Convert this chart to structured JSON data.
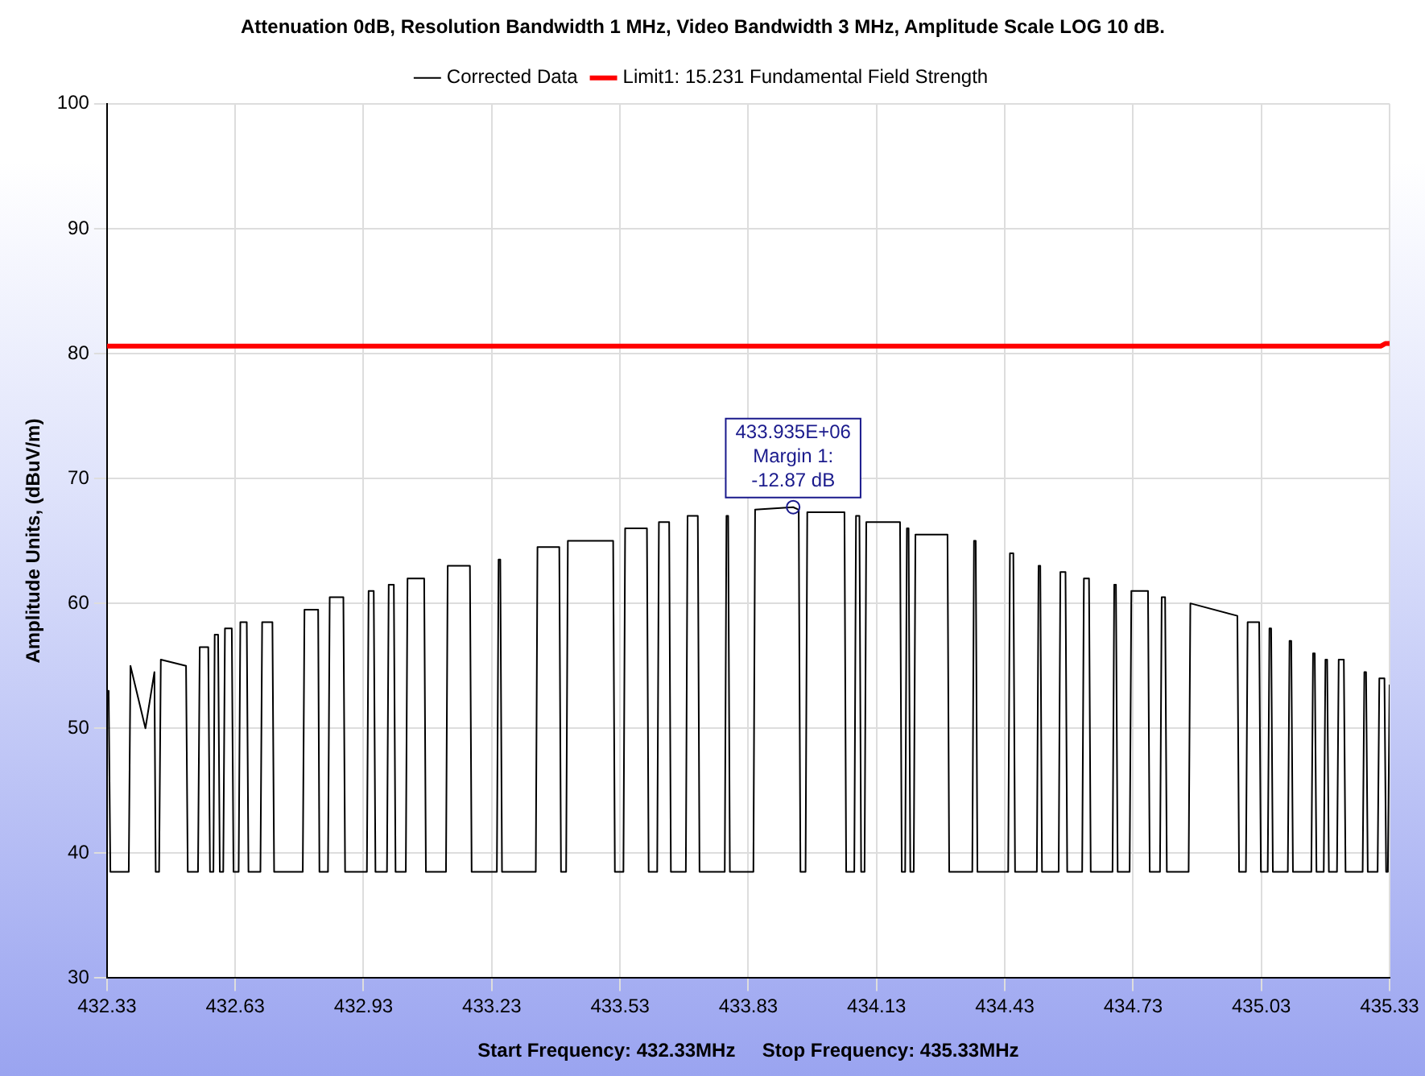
{
  "chart_data": {
    "type": "line",
    "title": "Attenuation 0dB, Resolution Bandwidth 1 MHz, Video Bandwidth 3 MHz, Amplitude Scale LOG 10 dB.",
    "xlabel": "Start Frequency: 432.33MHz     Stop Frequency: 435.33MHz",
    "ylabel": "Amplitude Units, (dBuV/m)",
    "xlim": [
      432.33,
      435.33
    ],
    "xticks": [
      432.33,
      432.63,
      432.93,
      433.23,
      433.53,
      433.83,
      434.13,
      434.43,
      434.73,
      435.03,
      435.33
    ],
    "ylim": [
      30,
      100
    ],
    "yticks": [
      30,
      40,
      50,
      60,
      70,
      80,
      90,
      100
    ],
    "grid": true,
    "legend": "top",
    "marker": "none",
    "line_style": "solid",
    "annotations": [
      {
        "text": "433.935E+06\nMargin 1:\n-12.87 dB",
        "x": 433.935,
        "y": 67.7
      }
    ],
    "series": [
      {
        "name": "Corrected Data",
        "color": "#000000",
        "x": [
          432.33,
          432.334,
          432.338,
          432.381,
          432.385,
          432.42,
          432.441,
          432.444,
          432.452,
          432.456,
          432.515,
          432.519,
          432.543,
          432.547,
          432.567,
          432.571,
          432.579,
          432.582,
          432.59,
          432.594,
          432.602,
          432.606,
          432.622,
          432.626,
          432.638,
          432.642,
          432.657,
          432.661,
          432.689,
          432.693,
          432.717,
          432.721,
          432.788,
          432.792,
          432.824,
          432.827,
          432.847,
          432.851,
          432.883,
          432.887,
          432.938,
          432.942,
          432.954,
          432.958,
          432.985,
          432.989,
          433.001,
          433.005,
          433.029,
          433.033,
          433.072,
          433.076,
          433.123,
          433.127,
          433.179,
          433.183,
          433.242,
          433.246,
          433.25,
          433.254,
          433.333,
          433.337,
          433.388,
          433.392,
          433.404,
          433.408,
          433.514,
          433.518,
          433.538,
          433.542,
          433.593,
          433.597,
          433.617,
          433.621,
          433.645,
          433.649,
          433.684,
          433.688,
          433.712,
          433.716,
          433.775,
          433.779,
          433.783,
          433.787,
          433.842,
          433.846,
          433.935,
          433.948,
          433.952,
          433.964,
          433.968,
          434.055,
          434.059,
          434.078,
          434.082,
          434.09,
          434.094,
          434.102,
          434.106,
          434.185,
          434.189,
          434.197,
          434.201,
          434.205,
          434.209,
          434.217,
          434.221,
          434.296,
          434.3,
          434.354,
          434.358,
          434.362,
          434.366,
          434.438,
          434.442,
          434.45,
          434.454,
          434.505,
          434.509,
          434.513,
          434.517,
          434.556,
          434.56,
          434.572,
          434.576,
          434.611,
          434.615,
          434.627,
          434.631,
          434.682,
          434.686,
          434.69,
          434.694,
          434.722,
          434.726,
          434.765,
          434.769,
          434.793,
          434.797,
          434.805,
          434.809,
          434.86,
          434.864,
          434.974,
          434.978,
          434.994,
          434.998,
          435.025,
          435.029,
          435.045,
          435.049,
          435.053,
          435.057,
          435.092,
          435.096,
          435.1,
          435.104,
          435.147,
          435.151,
          435.155,
          435.159,
          435.176,
          435.18,
          435.184,
          435.188,
          435.207,
          435.211,
          435.223,
          435.227,
          435.267,
          435.271,
          435.275,
          435.279,
          435.302,
          435.306,
          435.318,
          435.322,
          435.326,
          435.33
        ],
        "values": [
          53,
          53,
          38.5,
          38.5,
          55,
          50,
          54.5,
          38.5,
          38.5,
          55.5,
          55,
          38.5,
          38.5,
          56.5,
          56.5,
          38.5,
          38.5,
          57.5,
          57.5,
          38.5,
          38.5,
          58,
          58,
          38.5,
          38.5,
          58.5,
          58.5,
          38.5,
          38.5,
          58.5,
          58.5,
          38.5,
          38.5,
          59.5,
          59.5,
          38.5,
          38.5,
          60.5,
          60.5,
          38.5,
          38.5,
          61,
          61,
          38.5,
          38.5,
          61.5,
          61.5,
          38.5,
          38.5,
          62,
          62,
          38.5,
          38.5,
          63,
          63,
          38.5,
          38.5,
          63.5,
          63.5,
          38.5,
          38.5,
          64.5,
          64.5,
          38.5,
          38.5,
          65,
          65,
          38.5,
          38.5,
          66,
          66,
          38.5,
          38.5,
          66.5,
          66.5,
          38.5,
          38.5,
          67,
          67,
          38.5,
          38.5,
          67,
          67,
          38.5,
          38.5,
          67.5,
          67.7,
          67.5,
          38.5,
          38.5,
          67.3,
          67.3,
          38.5,
          38.5,
          67,
          67,
          38.5,
          38.5,
          66.5,
          66.5,
          38.5,
          38.5,
          66,
          66,
          38.5,
          38.5,
          65.5,
          65.5,
          38.5,
          38.5,
          65,
          65,
          38.5,
          38.5,
          64,
          64,
          38.5,
          38.5,
          63,
          63,
          38.5,
          38.5,
          62.5,
          62.5,
          38.5,
          38.5,
          62,
          62,
          38.5,
          38.5,
          61.5,
          61.5,
          38.5,
          38.5,
          61,
          61,
          38.5,
          38.5,
          60.5,
          60.5,
          38.5,
          38.5,
          60,
          59,
          38.5,
          38.5,
          58.5,
          58.5,
          38.5,
          38.5,
          58,
          58,
          38.5,
          38.5,
          57,
          57,
          38.5,
          38.5,
          56,
          56,
          38.5,
          38.5,
          55.5,
          55.5,
          38.5,
          38.5,
          55.5,
          55.5,
          38.5,
          38.5,
          54.5,
          54.5,
          38.5,
          38.5,
          54,
          54,
          38.5,
          38.5,
          53.5
        ]
      },
      {
        "name": "Limit1: 15.231 Fundamental Field Strength",
        "color": "#ff0000",
        "x": [
          432.33,
          435.31,
          435.32,
          435.33
        ],
        "values": [
          80.6,
          80.6,
          80.8,
          80.8
        ]
      }
    ]
  }
}
